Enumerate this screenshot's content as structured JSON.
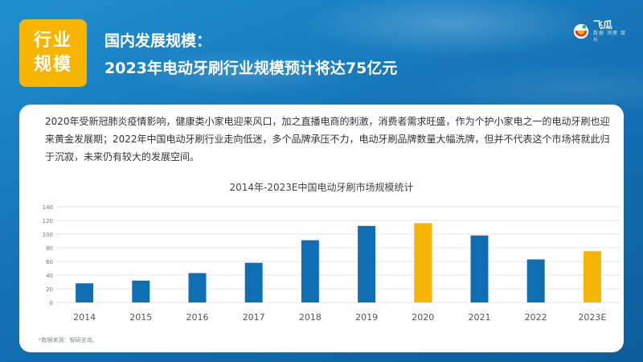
{
  "header": {
    "tag_line1": "行业",
    "tag_line2": "规模",
    "title_line1": "国内发展规模：",
    "title_line2": "2023年电动牙刷行业规模预计将达75亿元"
  },
  "logo": {
    "name": "飞瓜",
    "subtitle": "数据 洞察 增长"
  },
  "intro_text": "2020年受新冠肺炎疫情影响，健康类小家电迎来风口，加之直播电商的刺激，消费者需求旺盛，作为个护小家电之一的电动牙刷也迎来黄金发展期；2022年中国电动牙刷行业走向低迷，多个品牌承压不力，电动牙刷品牌数量大幅洗牌，但并不代表这个市场将就此归于沉寂，未来仍有较大的发展空间。",
  "source": "*数据来源：智研咨询。",
  "colors": {
    "bar_normal": "#0f6fb3",
    "bar_highlight": "#f7b500",
    "tag": "#f7b500"
  },
  "chart_data": {
    "type": "bar",
    "title": "2014年-2023E中国电动牙刷市场规模统计",
    "xlabel": "",
    "ylabel": "",
    "categories": [
      "2014",
      "2015",
      "2016",
      "2017",
      "2018",
      "2019",
      "2020",
      "2021",
      "2022",
      "2023E"
    ],
    "values": [
      28,
      32,
      43,
      58,
      91,
      112,
      116,
      98,
      63,
      75
    ],
    "highlight": [
      false,
      false,
      false,
      false,
      false,
      false,
      true,
      false,
      false,
      true
    ],
    "ylim": [
      0,
      140
    ],
    "yticks": [
      0,
      20,
      40,
      60,
      80,
      100,
      120,
      140
    ],
    "grid": true,
    "legend": "none"
  }
}
